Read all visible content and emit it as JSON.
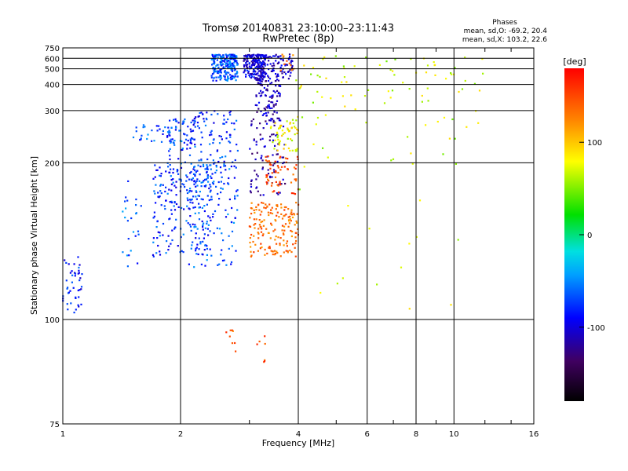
{
  "chart_data": {
    "type": "scatter",
    "title": "Tromsø 20140831 23:10:00–23:11:43",
    "subtitle": "RwPretec (8p)",
    "xlabel": "Frequency [MHz]",
    "ylabel": "Stationary phase Virtual Height [km]",
    "x_scale": "log",
    "y_scale": "reciprocal",
    "xlim": [
      1,
      16
    ],
    "ylim": [
      75,
      750
    ],
    "x_ticks": [
      1,
      2,
      4,
      6,
      8,
      10,
      16
    ],
    "y_ticks": [
      75,
      100,
      200,
      300,
      400,
      500,
      600,
      750
    ],
    "grid": true,
    "stats": {
      "heading": "Phases",
      "line_o": "mean, sd,O: -69.2, 20.4",
      "line_x": "mean, sd,X: 103.2, 22.6"
    },
    "colorbar": {
      "label": "[deg]",
      "ticks": [
        100,
        0,
        -100
      ],
      "range": [
        -180,
        180
      ]
    },
    "clusters": [
      {
        "x": [
          1.0,
          1.12
        ],
        "y": [
          100,
          125
        ],
        "phase": -85,
        "n": 45
      },
      {
        "x": [
          1.4,
          1.6
        ],
        "y": [
          120,
          180
        ],
        "phase": -70,
        "n": 25
      },
      {
        "x": [
          1.5,
          1.9
        ],
        "y": [
          230,
          265
        ],
        "phase": -72,
        "n": 30
      },
      {
        "x": [
          1.7,
          2.4
        ],
        "y": [
          125,
          200
        ],
        "phase": -78,
        "n": 220
      },
      {
        "x": [
          1.85,
          2.2
        ],
        "y": [
          200,
          280
        ],
        "phase": -75,
        "n": 70
      },
      {
        "x": [
          2.15,
          2.8
        ],
        "y": [
          200,
          300
        ],
        "phase": -80,
        "n": 80
      },
      {
        "x": [
          2.1,
          2.8
        ],
        "y": [
          120,
          200
        ],
        "phase": -72,
        "n": 140
      },
      {
        "x": [
          2.4,
          2.8
        ],
        "y": [
          420,
          650
        ],
        "phase": -70,
        "n": 240
      },
      {
        "x": [
          2.9,
          3.3
        ],
        "y": [
          420,
          650
        ],
        "phase": -100,
        "n": 180
      },
      {
        "x": [
          3.1,
          3.9
        ],
        "y": [
          420,
          650
        ],
        "phase": -108,
        "n": 110
      },
      {
        "x": [
          3.1,
          3.6
        ],
        "y": [
          270,
          420
        ],
        "phase": -112,
        "n": 90
      },
      {
        "x": [
          3.0,
          3.7
        ],
        "y": [
          165,
          280
        ],
        "phase": -115,
        "n": 90
      },
      {
        "x": [
          3.4,
          4.0
        ],
        "y": [
          215,
          280
        ],
        "phase": 70,
        "n": 55
      },
      {
        "x": [
          3.0,
          4.0
        ],
        "y": [
          125,
          160
        ],
        "phase": 130,
        "n": 170
      },
      {
        "x": [
          3.3,
          4.0
        ],
        "y": [
          165,
          210
        ],
        "phase": 145,
        "n": 60
      },
      {
        "x": [
          3.6,
          3.95
        ],
        "y": [
          480,
          650
        ],
        "phase": 120,
        "n": 12
      },
      {
        "x": [
          2.6,
          2.8
        ],
        "y": [
          88,
          97
        ],
        "phase": 140,
        "n": 8
      },
      {
        "x": [
          3.1,
          3.3
        ],
        "y": [
          88,
          97
        ],
        "phase": 140,
        "n": 7
      },
      {
        "x": [
          3.9,
          12.0
        ],
        "y": [
          90,
          650
        ],
        "phase": 60,
        "n": 110
      }
    ]
  }
}
